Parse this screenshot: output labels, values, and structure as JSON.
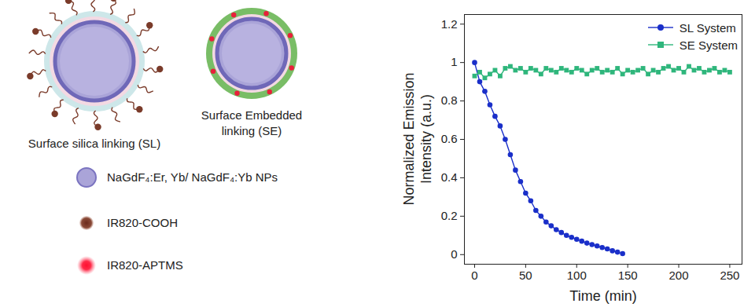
{
  "chart_data": {
    "type": "line",
    "x_label": "Time (min)",
    "y_label": "Normalized Emission Intensity (a.u.)",
    "xlim": [
      -10,
      262
    ],
    "ylim": [
      -0.05,
      1.25
    ],
    "xticks": [
      0,
      50,
      100,
      150,
      200,
      250
    ],
    "yticks": [
      0,
      0.2,
      0.4,
      0.6,
      0.8,
      1,
      1.2
    ],
    "legend": "top-right",
    "series": [
      {
        "name": "SL System",
        "color": "#1a2fc9",
        "marker": "circle",
        "x": [
          0,
          5,
          10,
          15,
          20,
          25,
          30,
          35,
          40,
          45,
          50,
          55,
          60,
          65,
          70,
          75,
          80,
          85,
          90,
          95,
          100,
          105,
          110,
          115,
          120,
          125,
          130,
          135,
          140,
          145
        ],
        "values": [
          1.0,
          0.9,
          0.85,
          0.78,
          0.72,
          0.67,
          0.6,
          0.52,
          0.44,
          0.38,
          0.32,
          0.28,
          0.23,
          0.2,
          0.17,
          0.15,
          0.13,
          0.115,
          0.1,
          0.09,
          0.08,
          0.07,
          0.06,
          0.052,
          0.045,
          0.037,
          0.03,
          0.02,
          0.013,
          0.005
        ]
      },
      {
        "name": "SE System",
        "color": "#2fb67c",
        "marker": "square",
        "x": [
          0,
          5,
          10,
          15,
          20,
          25,
          30,
          35,
          40,
          45,
          50,
          55,
          60,
          65,
          70,
          75,
          80,
          85,
          90,
          95,
          100,
          105,
          110,
          115,
          120,
          125,
          130,
          135,
          140,
          145,
          150,
          155,
          160,
          165,
          170,
          175,
          180,
          185,
          190,
          195,
          200,
          205,
          210,
          215,
          220,
          225,
          230,
          235,
          240,
          245,
          250
        ],
        "values": [
          0.93,
          0.95,
          0.92,
          0.94,
          0.96,
          0.93,
          0.97,
          0.98,
          0.96,
          0.97,
          0.95,
          0.97,
          0.96,
          0.94,
          0.97,
          0.96,
          0.95,
          0.97,
          0.96,
          0.95,
          0.97,
          0.96,
          0.94,
          0.96,
          0.97,
          0.95,
          0.96,
          0.95,
          0.97,
          0.94,
          0.96,
          0.95,
          0.96,
          0.97,
          0.94,
          0.96,
          0.95,
          0.97,
          0.98,
          0.96,
          0.97,
          0.95,
          0.98,
          0.96,
          0.97,
          0.95,
          0.96,
          0.97,
          0.95,
          0.96,
          0.95
        ]
      }
    ]
  },
  "diagram": {
    "particles": [
      {
        "label": "Surface silica linking (SL)"
      },
      {
        "label": "Surface Embedded linking (SE)"
      }
    ],
    "key": [
      {
        "label": "NaGdF₄:Er, Yb/ NaGdF₄:Yb NPs"
      },
      {
        "label": "IR820-COOH"
      },
      {
        "label": "IR820-APTMS"
      }
    ]
  }
}
